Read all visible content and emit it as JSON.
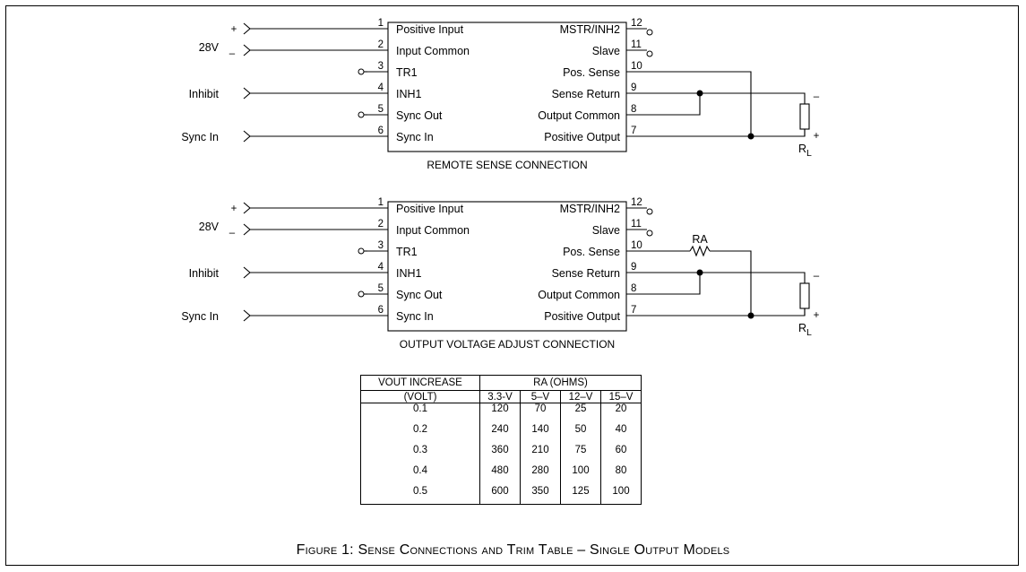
{
  "diagrams": [
    {
      "caption": "REMOTE SENSE CONNECTION",
      "left_pins": [
        {
          "num": "1",
          "name": "Positive Input"
        },
        {
          "num": "2",
          "name": "Input Common"
        },
        {
          "num": "3",
          "name": "TR1"
        },
        {
          "num": "4",
          "name": "INH1"
        },
        {
          "num": "5",
          "name": "Sync Out"
        },
        {
          "num": "6",
          "name": "Sync In"
        }
      ],
      "right_pins": [
        {
          "num": "12",
          "name": "MSTR/INH2"
        },
        {
          "num": "11",
          "name": "Slave"
        },
        {
          "num": "10",
          "name": "Pos. Sense"
        },
        {
          "num": "9",
          "name": "Sense Return"
        },
        {
          "num": "8",
          "name": "Output Common"
        },
        {
          "num": "7",
          "name": "Positive Output"
        }
      ],
      "inputs": {
        "supply": "28V",
        "plus": "+",
        "minus": "–",
        "inhibit": "Inhibit",
        "sync": "Sync In"
      },
      "load": {
        "minus": "–",
        "plus": "+",
        "name": "R",
        "sub": "L"
      }
    },
    {
      "caption": "OUTPUT VOLTAGE ADJUST CONNECTION",
      "left_pins": [
        {
          "num": "1",
          "name": "Positive Input"
        },
        {
          "num": "2",
          "name": "Input Common"
        },
        {
          "num": "3",
          "name": "TR1"
        },
        {
          "num": "4",
          "name": "INH1"
        },
        {
          "num": "5",
          "name": "Sync Out"
        },
        {
          "num": "6",
          "name": "Sync In"
        }
      ],
      "right_pins": [
        {
          "num": "12",
          "name": "MSTR/INH2"
        },
        {
          "num": "11",
          "name": "Slave"
        },
        {
          "num": "10",
          "name": "Pos. Sense"
        },
        {
          "num": "9",
          "name": "Sense Return"
        },
        {
          "num": "8",
          "name": "Output Common"
        },
        {
          "num": "7",
          "name": "Positive Output"
        }
      ],
      "inputs": {
        "supply": "28V",
        "plus": "+",
        "minus": "–",
        "inhibit": "Inhibit",
        "sync": "Sync In"
      },
      "load": {
        "minus": "–",
        "plus": "+",
        "name": "R",
        "sub": "L"
      },
      "resistor": "RA"
    }
  ],
  "table": {
    "row_header_line1": "VOUT INCREASE",
    "row_header_line2": "(VOLT)",
    "group_header": "RA (OHMS)",
    "columns": [
      "3.3-V",
      "5–V",
      "12–V",
      "15–V"
    ],
    "rows": [
      {
        "vout": "0.1",
        "values": [
          "120",
          "70",
          "25",
          "20"
        ]
      },
      {
        "vout": "0.2",
        "values": [
          "240",
          "140",
          "50",
          "40"
        ]
      },
      {
        "vout": "0.3",
        "values": [
          "360",
          "210",
          "75",
          "60"
        ]
      },
      {
        "vout": "0.4",
        "values": [
          "480",
          "280",
          "100",
          "80"
        ]
      },
      {
        "vout": "0.5",
        "values": [
          "600",
          "350",
          "125",
          "100"
        ]
      }
    ]
  },
  "figure_caption": "Figure 1: Sense Connections and Trim Table – Single Output Models"
}
